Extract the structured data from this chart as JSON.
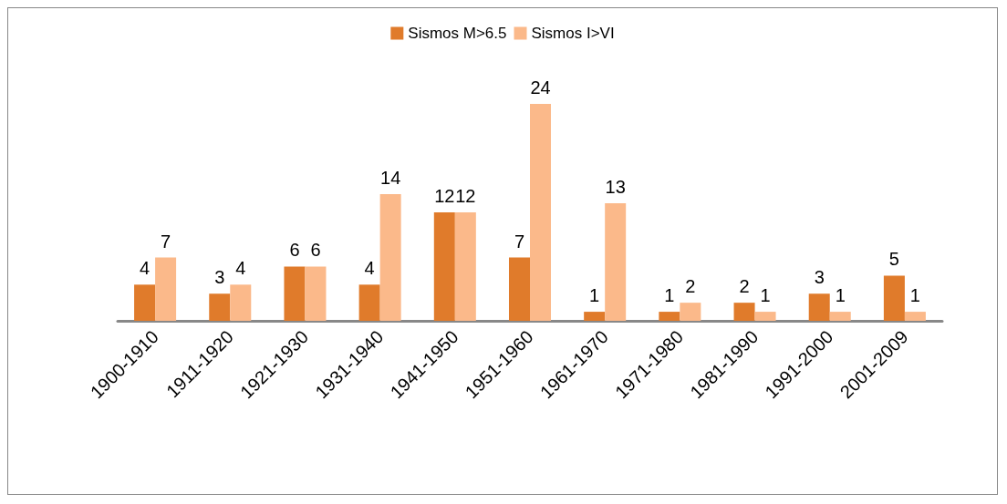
{
  "chart_data": {
    "type": "bar",
    "categories": [
      "1900-1910",
      "1911-1920",
      "1921-1930",
      "1931-1940",
      "1941-1950",
      "1951-1960",
      "1961-1970",
      "1971-1980",
      "1981-1990",
      "1991-2000",
      "2001-2009"
    ],
    "series": [
      {
        "name": "Sismos M>6.5",
        "color": "#e07b2b",
        "values": [
          4,
          3,
          6,
          4,
          12,
          7,
          1,
          1,
          2,
          3,
          5
        ]
      },
      {
        "name": "Sismos I>VI",
        "color": "#fbb98a",
        "values": [
          7,
          4,
          6,
          14,
          12,
          24,
          13,
          2,
          1,
          1,
          1
        ]
      }
    ],
    "data_labels": true,
    "legend": "top",
    "grid": false,
    "tick_labels": "x"
  }
}
